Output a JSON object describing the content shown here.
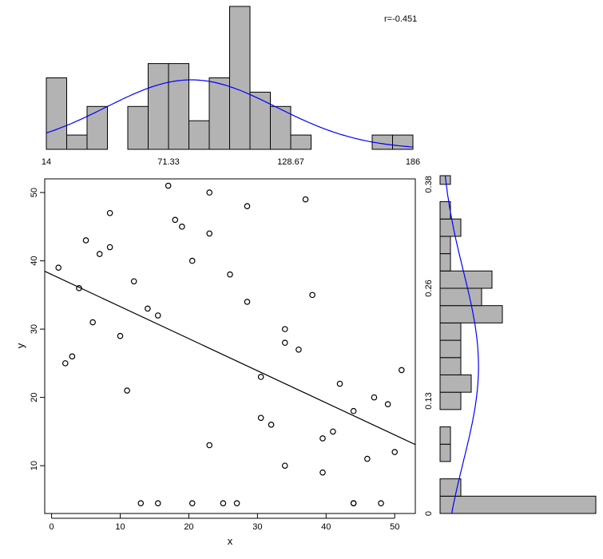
{
  "chart_data": [
    {
      "type": "scatter",
      "xlabel": "x",
      "ylabel": "y",
      "xlim": [
        -1,
        53
      ],
      "ylim": [
        3,
        52
      ],
      "x_ticks": [
        0,
        10,
        20,
        30,
        40,
        50
      ],
      "y_ticks": [
        10,
        20,
        30,
        40,
        50
      ],
      "annotation": "r=-0.451",
      "regression_line": {
        "intercept": 38.0,
        "slope": -0.47
      },
      "points": [
        {
          "x": 1,
          "y": 39
        },
        {
          "x": 2,
          "y": 25
        },
        {
          "x": 3,
          "y": 26
        },
        {
          "x": 4,
          "y": 36
        },
        {
          "x": 5,
          "y": 43
        },
        {
          "x": 6,
          "y": 31
        },
        {
          "x": 7,
          "y": 41
        },
        {
          "x": 8.5,
          "y": 47
        },
        {
          "x": 8.5,
          "y": 42
        },
        {
          "x": 10,
          "y": 29
        },
        {
          "x": 11,
          "y": 21
        },
        {
          "x": 12,
          "y": 37
        },
        {
          "x": 13,
          "y": 4.5
        },
        {
          "x": 14,
          "y": 33
        },
        {
          "x": 15.5,
          "y": 32
        },
        {
          "x": 15.5,
          "y": 4.5
        },
        {
          "x": 17,
          "y": 51
        },
        {
          "x": 18,
          "y": 46
        },
        {
          "x": 19,
          "y": 45
        },
        {
          "x": 20.5,
          "y": 40
        },
        {
          "x": 20.5,
          "y": 4.5
        },
        {
          "x": 23,
          "y": 50
        },
        {
          "x": 23,
          "y": 44
        },
        {
          "x": 23,
          "y": 13
        },
        {
          "x": 25,
          "y": 4.5
        },
        {
          "x": 26,
          "y": 38
        },
        {
          "x": 27,
          "y": 4.5
        },
        {
          "x": 28.5,
          "y": 48
        },
        {
          "x": 28.5,
          "y": 34
        },
        {
          "x": 30.5,
          "y": 23
        },
        {
          "x": 30.5,
          "y": 17
        },
        {
          "x": 32,
          "y": 16
        },
        {
          "x": 34,
          "y": 30
        },
        {
          "x": 34,
          "y": 28
        },
        {
          "x": 34,
          "y": 10
        },
        {
          "x": 36,
          "y": 27
        },
        {
          "x": 37,
          "y": 49
        },
        {
          "x": 38,
          "y": 35
        },
        {
          "x": 39.5,
          "y": 14
        },
        {
          "x": 39.5,
          "y": 9
        },
        {
          "x": 41,
          "y": 15
        },
        {
          "x": 42,
          "y": 22
        },
        {
          "x": 44,
          "y": 18
        },
        {
          "x": 44,
          "y": 4.5
        },
        {
          "x": 44,
          "y": 4.5
        },
        {
          "x": 46,
          "y": 11
        },
        {
          "x": 47,
          "y": 20
        },
        {
          "x": 48,
          "y": 4.5
        },
        {
          "x": 49,
          "y": 19
        },
        {
          "x": 50,
          "y": 12
        },
        {
          "x": 51,
          "y": 24
        }
      ]
    },
    {
      "type": "bar",
      "orientation": "vertical",
      "position": "top",
      "bin_edges": [
        14,
        23.556,
        33.111,
        42.667,
        52.222,
        61.778,
        71.333,
        80.889,
        90.444,
        100,
        109.556,
        119.111,
        128.667,
        138.222,
        147.778,
        157.333,
        166.889,
        176.444,
        186
      ],
      "values": [
        5,
        1,
        3,
        0,
        3,
        6,
        6,
        2,
        5,
        10,
        4,
        3,
        1,
        0,
        0,
        0,
        1,
        1
      ],
      "ylim": [
        0,
        10
      ],
      "x_ticks": [
        14,
        71.33,
        128.67,
        186
      ],
      "x_tick_labels": [
        "14",
        "71.33",
        "128.67",
        "186"
      ],
      "curve": {
        "type": "normal",
        "mean": 82,
        "sd": 40,
        "color": "#0000ff"
      },
      "bar_color": "#b3b3b3"
    },
    {
      "type": "bar",
      "orientation": "horizontal",
      "position": "right",
      "bin_edges": [
        0,
        0.02,
        0.04,
        0.06,
        0.08,
        0.1,
        0.12,
        0.14,
        0.16,
        0.18,
        0.2,
        0.22,
        0.24,
        0.26,
        0.28,
        0.3,
        0.32,
        0.34,
        0.36,
        0.38,
        0.39
      ],
      "values": [
        15,
        2,
        0,
        1,
        1,
        0,
        2,
        3,
        2,
        2,
        2,
        6,
        4,
        5,
        1,
        1,
        2,
        1,
        0,
        1
      ],
      "xlim": [
        0,
        15
      ],
      "y_ticks": [
        0,
        0.13,
        0.26,
        0.38
      ],
      "y_tick_labels": [
        "0",
        "0.13",
        "0.26",
        "0.38"
      ],
      "curve": {
        "type": "normal",
        "mean": 0.17,
        "sd": 0.11,
        "color": "#0000ff"
      },
      "bar_color": "#b3b3b3"
    }
  ]
}
